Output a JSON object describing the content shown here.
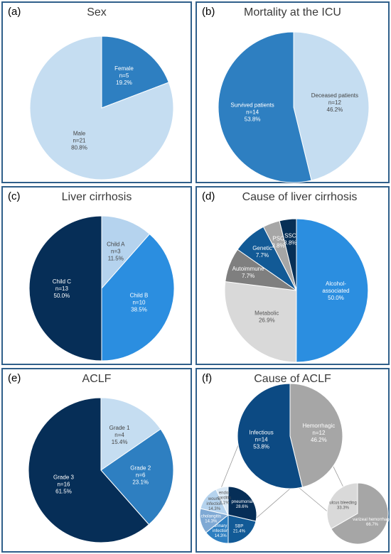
{
  "chart_data": [
    {
      "id": "a",
      "type": "pie",
      "panel_label": "(a)",
      "title": "Sex",
      "slices": [
        {
          "name": "Female",
          "n": "n=5",
          "pct": "19.2%",
          "value": 19.2,
          "color": "#2e7fc1",
          "text_color": "#ffffff"
        },
        {
          "name": "Male",
          "n": "n=21",
          "pct": "80.8%",
          "value": 80.8,
          "color": "#c5ddf1",
          "text_color": "#444444"
        }
      ]
    },
    {
      "id": "b",
      "type": "pie",
      "panel_label": "(b)",
      "title": "Mortality at the ICU",
      "slices": [
        {
          "name": "Deceased patients",
          "n": "n=12",
          "pct": "46.2%",
          "value": 46.2,
          "color": "#c5ddf1",
          "text_color": "#444444"
        },
        {
          "name": "Survived patients",
          "n": "n=14",
          "pct": "53.8%",
          "value": 53.8,
          "color": "#2e7fc1",
          "text_color": "#ffffff"
        }
      ]
    },
    {
      "id": "c",
      "type": "pie",
      "panel_label": "(c)",
      "title": "Liver cirrhosis",
      "slices": [
        {
          "name": "Child A",
          "n": "n=3",
          "pct": "11.5%",
          "value": 11.5,
          "color": "#b5d3ee",
          "text_color": "#444444"
        },
        {
          "name": "Child B",
          "n": "n=10",
          "pct": "38.5%",
          "value": 38.5,
          "color": "#2b8ee0",
          "text_color": "#ffffff"
        },
        {
          "name": "Child C",
          "n": "n=13",
          "pct": "50.0%",
          "value": 50.0,
          "color": "#062e57",
          "text_color": "#ffffff"
        }
      ]
    },
    {
      "id": "d",
      "type": "pie",
      "panel_label": "(d)",
      "title": "Cause of liver cirrhosis",
      "slices": [
        {
          "name": "Alcohol-associated",
          "pct": "50.0%",
          "value": 50.0,
          "color": "#2b8ee0",
          "text_color": "#ffffff"
        },
        {
          "name": "Metabolic",
          "pct": "26.9%",
          "value": 26.9,
          "color": "#d9d9d9",
          "text_color": "#555555"
        },
        {
          "name": "Autoimmune",
          "pct": "7.7%",
          "value": 7.7,
          "color": "#7f7f7f",
          "text_color": "#ffffff"
        },
        {
          "name": "Genetic",
          "pct": "7.7%",
          "value": 7.7,
          "color": "#125a96",
          "text_color": "#ffffff"
        },
        {
          "name": "PSC",
          "pct": "3.8%",
          "value": 3.8,
          "color": "#a6a6a6",
          "text_color": "#ffffff"
        },
        {
          "name": "SSC",
          "pct": "3.8%",
          "value": 3.8,
          "color": "#072f56",
          "text_color": "#ffffff"
        }
      ]
    },
    {
      "id": "e",
      "type": "pie",
      "panel_label": "(e)",
      "title": "ACLF",
      "slices": [
        {
          "name": "Grade 1",
          "n": "n=4",
          "pct": "15.4%",
          "value": 15.4,
          "color": "#c5ddf1",
          "text_color": "#444444"
        },
        {
          "name": "Grade 2",
          "n": "n=6",
          "pct": "23.1%",
          "value": 23.1,
          "color": "#2e7fc1",
          "text_color": "#ffffff"
        },
        {
          "name": "Grade 3",
          "n": "n=16",
          "pct": "61.5%",
          "value": 61.5,
          "color": "#062e57",
          "text_color": "#ffffff"
        }
      ]
    },
    {
      "id": "f",
      "type": "pie",
      "panel_label": "(f)",
      "title": "Cause of ACLF",
      "main": [
        {
          "name": "Hemorrhagic",
          "n": "n=12",
          "pct": "46.2%",
          "value": 46.2,
          "color": "#a6a6a6",
          "text_color": "#ffffff"
        },
        {
          "name": "Infectious",
          "n": "n=14",
          "pct": "53.8%",
          "value": 53.8,
          "color": "#0c4a83",
          "text_color": "#ffffff"
        }
      ],
      "infectious_breakdown": [
        {
          "name": "pneumonia",
          "pct": "28.6%",
          "value": 28.6,
          "color": "#062e57",
          "text_color": "#ffffff"
        },
        {
          "name": "SBP",
          "pct": "21.4%",
          "value": 21.4,
          "color": "#125a96",
          "text_color": "#ffffff"
        },
        {
          "name": "urinary infection",
          "pct": "14.3%",
          "value": 14.3,
          "color": "#2e7fc1",
          "text_color": "#ffffff"
        },
        {
          "name": "cholangitis",
          "pct": "14.3%",
          "value": 14.3,
          "color": "#7fa9d4",
          "text_color": "#ffffff"
        },
        {
          "name": "wound infection",
          "pct": "14.3%",
          "value": 14.3,
          "color": "#b5d3ee",
          "text_color": "#555555"
        },
        {
          "name": "endo-carditis",
          "pct": "7.1%",
          "value": 7.1,
          "color": "#dceaf6",
          "text_color": "#555555"
        }
      ],
      "hemorrhagic_breakdown": [
        {
          "name": "varizeal hemorrhage",
          "pct": "66.7%",
          "value": 66.7,
          "color": "#a6a6a6",
          "text_color": "#ffffff"
        },
        {
          "name": "ulcus bleeding",
          "pct": "33.3%",
          "value": 33.3,
          "color": "#d9d9d9",
          "text_color": "#555555"
        }
      ]
    }
  ]
}
